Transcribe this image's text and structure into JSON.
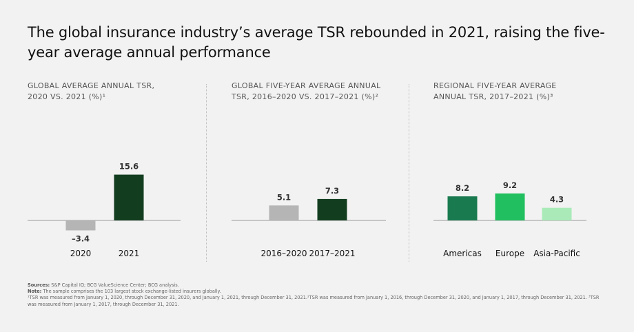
{
  "title": "The global insurance industry’s average TSR rebounded in 2021, raising the five-year average annual performance",
  "chart_data": [
    {
      "type": "bar",
      "title_line1": "GLOBAL AVERAGE ANNUAL TSR,",
      "title_line2": "2020 VS. 2021 (%)¹",
      "categories": [
        "2020",
        "2021"
      ],
      "values": [
        -3.4,
        15.6
      ],
      "value_labels": [
        "–3.4",
        "15.6"
      ],
      "colors": [
        "#b5b5b5",
        "#123d1f"
      ]
    },
    {
      "type": "bar",
      "title_line1": "GLOBAL FIVE-YEAR AVERAGE ANNUAL",
      "title_line2": "TSR, 2016–2020 VS. 2017–2021 (%)²",
      "categories": [
        "2016–2020",
        "2017–2021"
      ],
      "values": [
        5.1,
        7.3
      ],
      "value_labels": [
        "5.1",
        "7.3"
      ],
      "colors": [
        "#b5b5b5",
        "#123d1f"
      ]
    },
    {
      "type": "bar",
      "title_line1": "REGIONAL FIVE-YEAR AVERAGE",
      "title_line2": "ANNUAL TSR, 2017–2021 (%)³",
      "categories": [
        "Americas",
        "Europe",
        "Asia-Pacific"
      ],
      "values": [
        8.2,
        9.2,
        4.3
      ],
      "value_labels": [
        "8.2",
        "9.2",
        "4.3"
      ],
      "colors": [
        "#197a4f",
        "#21bf5f",
        "#a9eab8"
      ]
    }
  ],
  "footer": {
    "sources_label": "Sources:",
    "sources_text": " S&P Capital IQ; BCG ValueScience Center; BCG analysis.",
    "note_label": "Note:",
    "note_text": " The sample comprises the 103 largest stock exchange-listed insurers globally.",
    "footnotes": "¹TSR was measured from January 1, 2020, through December 31, 2020, and January 1, 2021, through December 31, 2021.²TSR was measured from January 1, 2016, through December 31, 2020, and January 1, 2017, through December 31, 2021. ³TSR was measured from January 1, 2017, through December 31, 2021."
  }
}
